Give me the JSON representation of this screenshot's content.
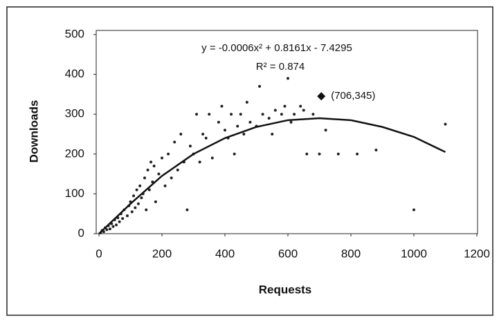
{
  "chart_data": {
    "type": "scatter",
    "xlabel": "Requests",
    "ylabel": "Downloads",
    "equation": "y = -0.0006x² + 0.8161x - 7.4295",
    "r_squared": "R² = 0.874",
    "color": "#222222",
    "x": [
      5,
      10,
      15,
      20,
      25,
      30,
      35,
      40,
      45,
      50,
      55,
      60,
      65,
      70,
      75,
      80,
      90,
      95,
      100,
      105,
      110,
      115,
      120,
      125,
      130,
      135,
      140,
      145,
      150,
      155,
      160,
      165,
      170,
      175,
      180,
      190,
      200,
      210,
      220,
      230,
      240,
      250,
      260,
      270,
      280,
      290,
      300,
      310,
      320,
      330,
      340,
      350,
      360,
      380,
      390,
      400,
      410,
      420,
      430,
      440,
      450,
      460,
      470,
      480,
      500,
      510,
      520,
      540,
      550,
      560,
      580,
      590,
      600,
      610,
      620,
      640,
      650,
      660,
      680,
      700,
      720,
      760,
      820,
      880,
      1000,
      1100
    ],
    "values": [
      2,
      8,
      5,
      15,
      10,
      20,
      12,
      25,
      18,
      35,
      22,
      40,
      30,
      50,
      38,
      60,
      45,
      70,
      80,
      55,
      95,
      65,
      110,
      75,
      120,
      90,
      100,
      140,
      60,
      160,
      110,
      180,
      130,
      170,
      80,
      150,
      190,
      120,
      200,
      140,
      230,
      160,
      250,
      180,
      60,
      220,
      200,
      300,
      180,
      250,
      240,
      300,
      190,
      280,
      320,
      260,
      240,
      300,
      200,
      270,
      300,
      250,
      330,
      280,
      270,
      370,
      300,
      290,
      250,
      310,
      300,
      320,
      390,
      280,
      300,
      320,
      310,
      200,
      300,
      200,
      260,
      200,
      200,
      210,
      60,
      275
    ],
    "trendline": {
      "x": [
        0,
        100,
        200,
        300,
        400,
        500,
        600,
        700,
        800,
        900,
        1000,
        1100
      ],
      "values": [
        0,
        75,
        145,
        200,
        240,
        268,
        285,
        290,
        285,
        268,
        243,
        205
      ]
    },
    "highlight": {
      "x": 706,
      "y": 345,
      "label": "(706,345)"
    },
    "xlim": [
      0,
      1200
    ],
    "ylim": [
      0,
      500
    ],
    "xticks": [
      0,
      200,
      400,
      600,
      800,
      1000,
      1200
    ],
    "yticks": [
      0,
      100,
      200,
      300,
      400,
      500
    ]
  }
}
